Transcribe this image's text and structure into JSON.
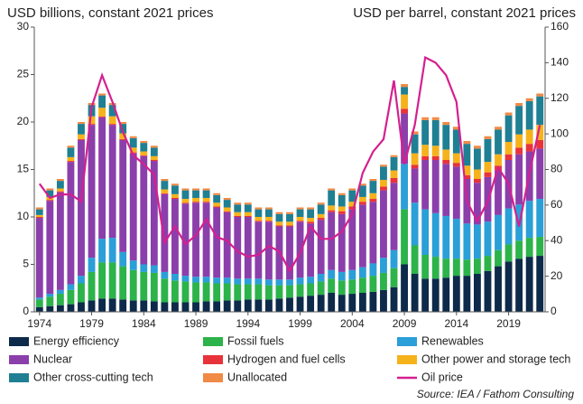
{
  "chart_data": {
    "type": "bar",
    "ylabel": "USD billions, constant 2021 prices",
    "y2label": "USD per barrel, constant 2021 prices",
    "source": "Source: IEA / Fathom Consulting",
    "categories": [
      "1974",
      null,
      null,
      null,
      null,
      "1979",
      null,
      null,
      null,
      null,
      "1984",
      null,
      null,
      null,
      null,
      "1989",
      null,
      null,
      null,
      null,
      "1994",
      null,
      null,
      null,
      null,
      "1999",
      null,
      null,
      null,
      null,
      "2004",
      null,
      null,
      null,
      null,
      "2009",
      null,
      null,
      null,
      null,
      "2014",
      null,
      null,
      null,
      null,
      "2019",
      null,
      null,
      null
    ],
    "ylim": [
      0,
      30
    ],
    "yticks": [
      0,
      5,
      10,
      15,
      20,
      25,
      30
    ],
    "y2lim": [
      0,
      160
    ],
    "y2ticks": [
      0,
      20,
      40,
      60,
      80,
      100,
      120,
      140,
      160
    ],
    "series": [
      {
        "name": "Energy efficiency",
        "color": "#0d2a4a",
        "values": [
          0.5,
          0.6,
          0.7,
          0.8,
          1.0,
          1.2,
          1.4,
          1.4,
          1.3,
          1.2,
          1.2,
          1.1,
          1.0,
          1.0,
          1.0,
          1.0,
          1.1,
          1.1,
          1.2,
          1.2,
          1.3,
          1.3,
          1.3,
          1.4,
          1.5,
          1.6,
          1.7,
          1.8,
          2.0,
          1.8,
          1.9,
          2.0,
          2.1,
          2.3,
          2.6,
          5.0,
          4.0,
          3.5,
          3.5,
          3.6,
          3.8,
          3.8,
          4.0,
          4.3,
          4.8,
          5.3,
          5.6,
          5.8,
          5.9
        ]
      },
      {
        "name": "Fossil fuels",
        "color": "#2cb34a",
        "values": [
          0.8,
          1.0,
          1.2,
          1.5,
          2.0,
          3.0,
          3.8,
          3.8,
          3.5,
          3.2,
          3.0,
          3.0,
          2.5,
          2.3,
          2.2,
          2.1,
          2.0,
          1.9,
          1.8,
          1.7,
          1.6,
          1.6,
          1.5,
          1.4,
          1.3,
          1.3,
          1.3,
          1.4,
          1.5,
          1.5,
          1.5,
          1.6,
          1.7,
          1.8,
          2.0,
          5.8,
          3.0,
          2.5,
          2.3,
          2.0,
          1.8,
          1.7,
          1.6,
          1.6,
          1.7,
          1.8,
          1.9,
          2.0,
          2.0
        ]
      },
      {
        "name": "Renewables",
        "color": "#2a9fd8",
        "values": [
          0.2,
          0.3,
          0.4,
          0.6,
          0.8,
          1.5,
          2.5,
          2.6,
          1.5,
          1.0,
          0.8,
          0.8,
          0.7,
          0.7,
          0.6,
          0.6,
          0.6,
          0.6,
          0.6,
          0.6,
          0.6,
          0.6,
          0.6,
          0.6,
          0.6,
          0.7,
          0.7,
          0.8,
          0.9,
          0.9,
          1.0,
          1.1,
          1.3,
          1.6,
          1.9,
          4.8,
          4.5,
          4.8,
          4.6,
          4.5,
          4.2,
          3.8,
          3.6,
          3.6,
          3.7,
          3.8,
          3.8,
          3.9,
          4.0
        ]
      },
      {
        "name": "Nuclear",
        "color": "#8a3fab",
        "values": [
          8.4,
          9.8,
          10.3,
          12.9,
          14.3,
          14.0,
          12.8,
          11.9,
          11.8,
          11.3,
          11.4,
          11.0,
          8.2,
          7.9,
          7.6,
          7.8,
          7.8,
          7.4,
          6.9,
          6.5,
          6.5,
          6.0,
          6.1,
          5.6,
          5.6,
          5.9,
          5.6,
          5.7,
          6.1,
          6.1,
          6.4,
          6.6,
          6.5,
          7.1,
          7.1,
          5.3,
          3.6,
          5.2,
          5.6,
          5.5,
          5.5,
          4.7,
          4.4,
          4.7,
          4.7,
          5.1,
          5.3,
          5.2,
          5.3
        ]
      },
      {
        "name": "Hydrogen and fuel cells",
        "color": "#e8333a",
        "values": [
          0.1,
          0.1,
          0.1,
          0.1,
          0.1,
          0.1,
          0.1,
          0.1,
          0.1,
          0.1,
          0.1,
          0.1,
          0.1,
          0.1,
          0.1,
          0.1,
          0.1,
          0.1,
          0.1,
          0.1,
          0.1,
          0.1,
          0.1,
          0.1,
          0.1,
          0.1,
          0.2,
          0.2,
          0.2,
          0.3,
          0.3,
          0.3,
          0.3,
          0.4,
          0.5,
          0.5,
          0.4,
          0.4,
          0.4,
          0.4,
          0.4,
          0.4,
          0.4,
          0.5,
          0.5,
          0.6,
          0.7,
          0.8,
          0.9
        ]
      },
      {
        "name": "Other power and storage tech",
        "color": "#f5b21b",
        "values": [
          0.2,
          0.3,
          0.3,
          0.4,
          0.5,
          0.8,
          0.9,
          0.8,
          0.6,
          0.5,
          0.4,
          0.4,
          0.4,
          0.4,
          0.4,
          0.4,
          0.4,
          0.4,
          0.4,
          0.4,
          0.4,
          0.4,
          0.4,
          0.4,
          0.4,
          0.4,
          0.4,
          0.4,
          0.5,
          0.5,
          0.5,
          0.5,
          0.6,
          0.7,
          0.8,
          1.5,
          1.2,
          1.2,
          1.1,
          1.1,
          1.0,
          1.0,
          1.0,
          1.1,
          1.2,
          1.3,
          1.4,
          1.5,
          1.6
        ]
      },
      {
        "name": "Other cross-cutting tech",
        "color": "#1f7f93",
        "values": [
          0.6,
          0.7,
          0.8,
          1.0,
          1.1,
          1.2,
          1.3,
          1.2,
          1.0,
          1.0,
          0.9,
          0.9,
          0.9,
          0.9,
          0.9,
          0.8,
          0.8,
          0.8,
          0.8,
          0.8,
          0.8,
          0.8,
          0.8,
          0.8,
          0.8,
          0.8,
          0.9,
          1.0,
          1.6,
          1.2,
          1.2,
          1.2,
          1.3,
          1.4,
          1.4,
          0.8,
          2.0,
          2.6,
          2.7,
          2.6,
          2.5,
          2.3,
          2.2,
          2.4,
          2.6,
          2.8,
          3.0,
          3.0,
          3.0
        ]
      },
      {
        "name": "Unallocated",
        "color": "#f08a45",
        "values": [
          0.2,
          0.2,
          0.2,
          0.2,
          0.2,
          0.2,
          0.2,
          0.2,
          0.2,
          0.2,
          0.2,
          0.2,
          0.2,
          0.2,
          0.2,
          0.2,
          0.2,
          0.2,
          0.2,
          0.2,
          0.2,
          0.2,
          0.2,
          0.2,
          0.2,
          0.2,
          0.2,
          0.2,
          0.2,
          0.2,
          0.2,
          0.2,
          0.2,
          0.2,
          0.2,
          0.3,
          0.3,
          0.3,
          0.3,
          0.3,
          0.3,
          0.3,
          0.3,
          0.3,
          0.3,
          0.3,
          0.3,
          0.3,
          0.3
        ]
      },
      {
        "name": "Oil price",
        "color": "#d4208f",
        "type": "line",
        "axis": "y2",
        "values": [
          72,
          64,
          66,
          66,
          62,
          115,
          133,
          118,
          101,
          88,
          83,
          77,
          39,
          48,
          38,
          43,
          52,
          42,
          40,
          34,
          31,
          32,
          37,
          34,
          23,
          33,
          48,
          41,
          41,
          45,
          55,
          78,
          90,
          97,
          130,
          83,
          105,
          143,
          140,
          133,
          118,
          62,
          51,
          62,
          81,
          72,
          48,
          78,
          105
        ]
      }
    ]
  }
}
